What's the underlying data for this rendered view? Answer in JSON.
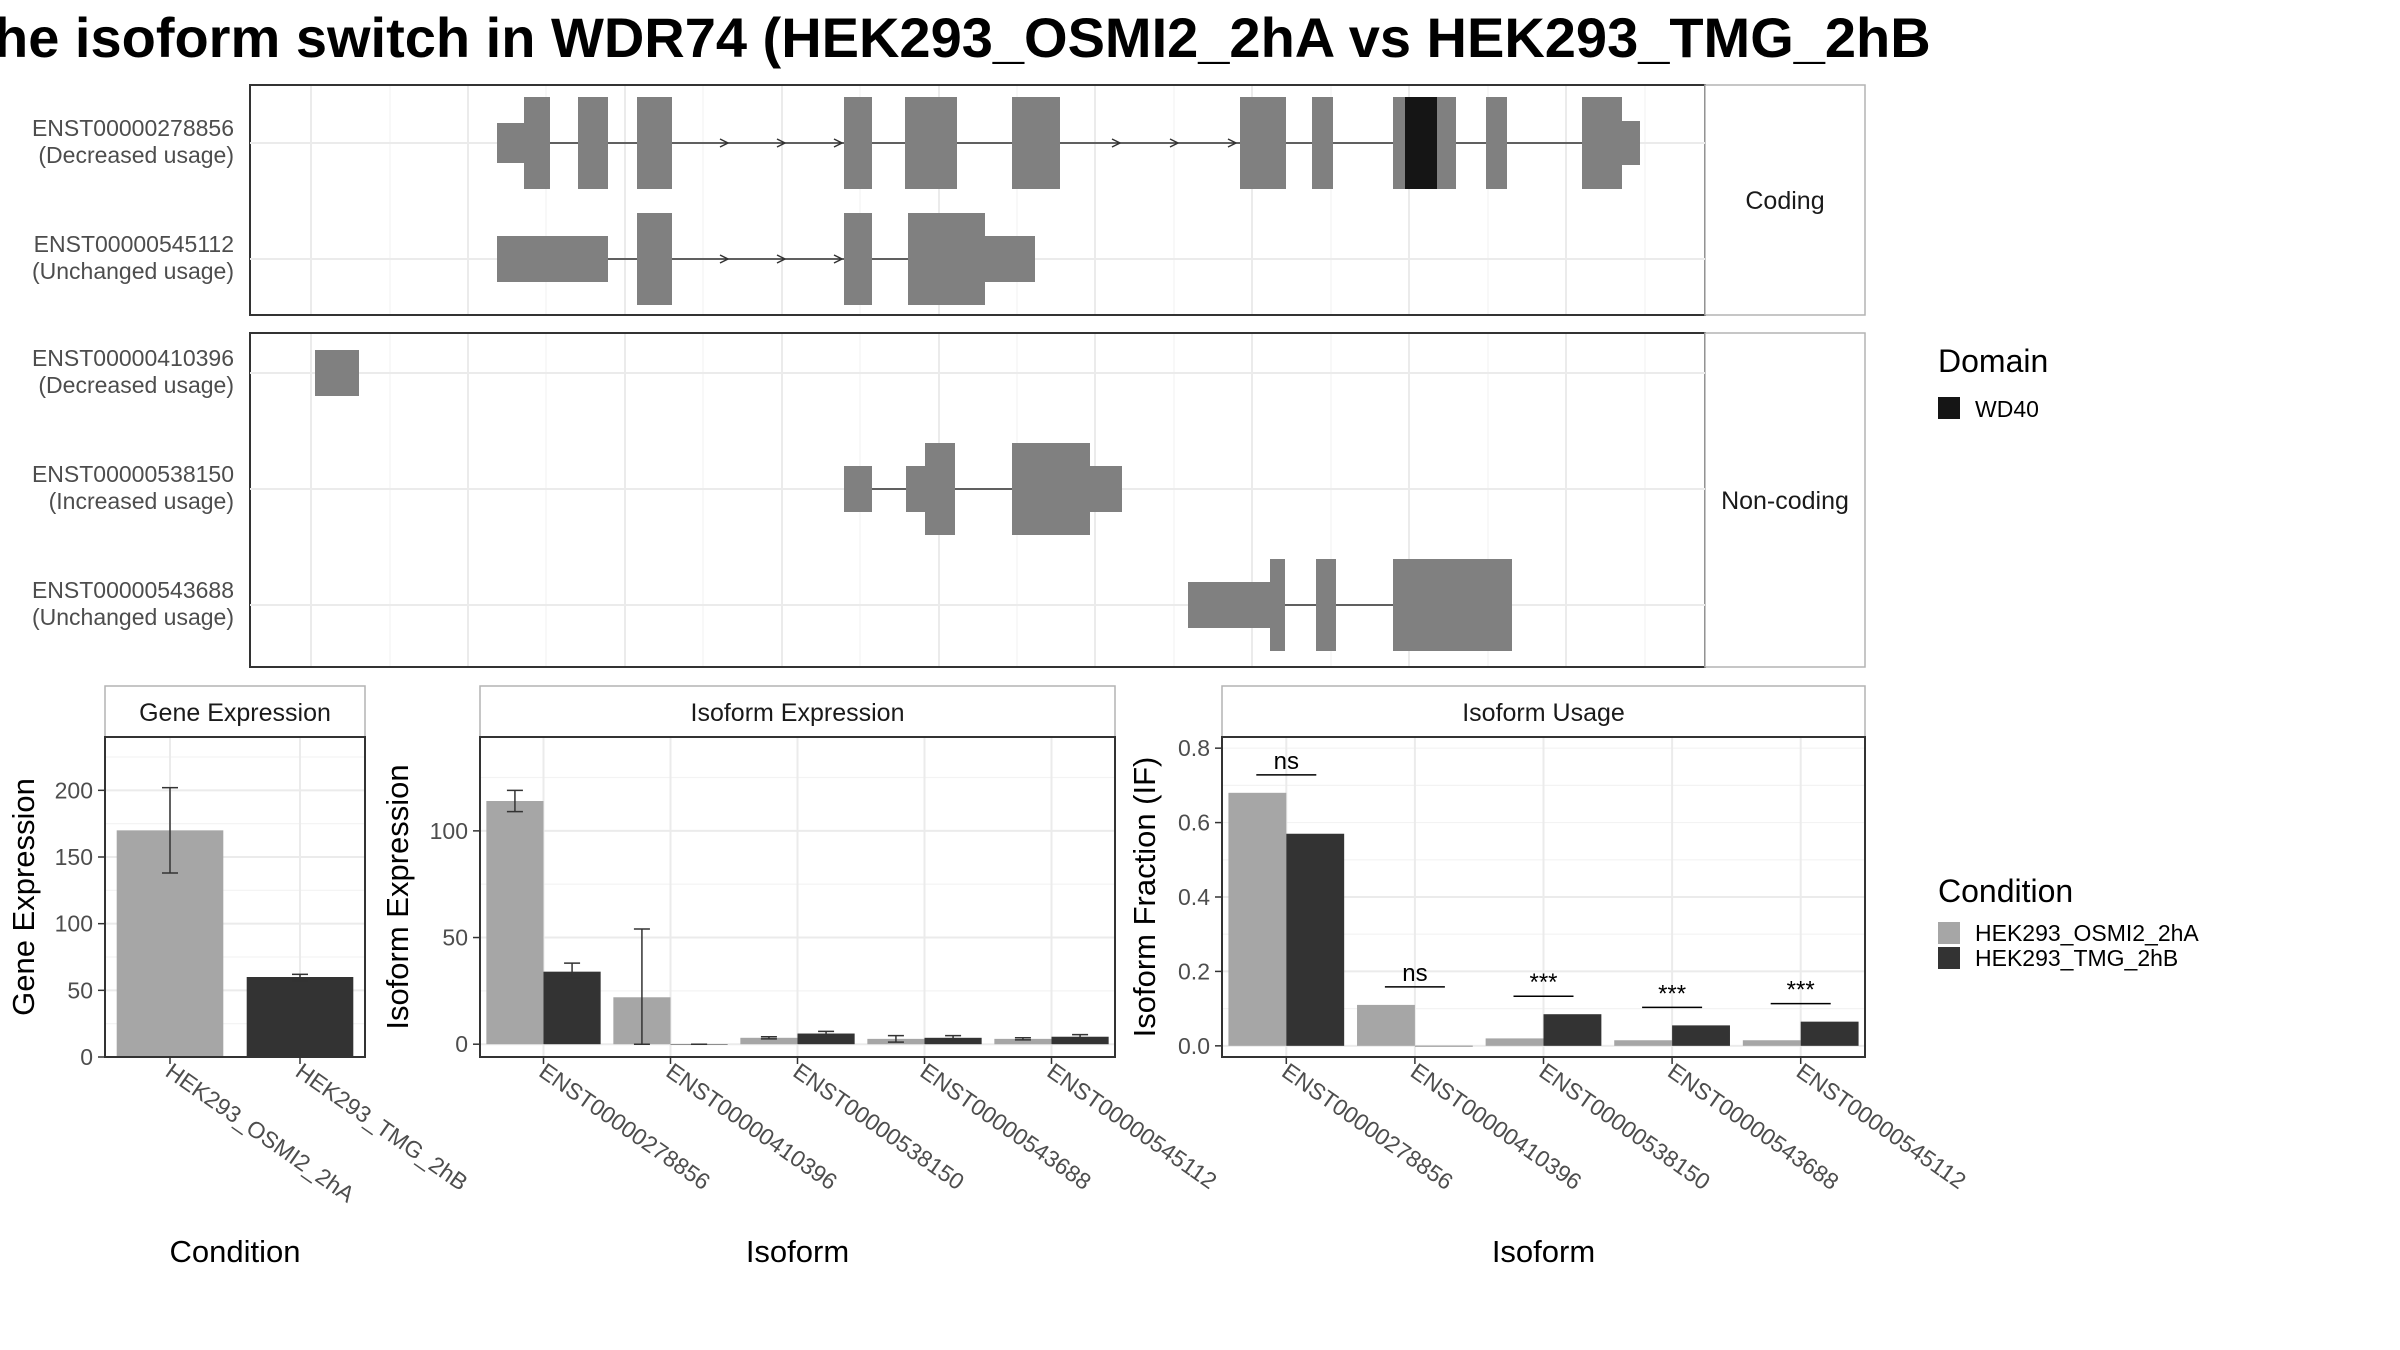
{
  "title": "he isoform switch in WDR74 (HEK293_OSMI2_2hA vs HEK293_TMG_2hB",
  "colors": {
    "exon": "#808080",
    "domain": "#151515",
    "cond1": "#a6a6a6",
    "cond2": "#333333",
    "grid": "#ebebeb",
    "frame": "#333333",
    "strip_border": "#b3b3b3"
  },
  "structure": {
    "facets": [
      "Coding",
      "Non-coding"
    ],
    "transcripts": [
      {
        "id": "ENST00000278856",
        "usage": "(Decreased usage)"
      },
      {
        "id": "ENST00000545112",
        "usage": "(Unchanged usage)"
      },
      {
        "id": "ENST00000410396",
        "usage": "(Decreased usage)"
      },
      {
        "id": "ENST00000538150",
        "usage": "(Increased usage)"
      },
      {
        "id": "ENST00000543688",
        "usage": "(Unchanged usage)"
      }
    ]
  },
  "legends": {
    "domain": {
      "title": "Domain",
      "items": [
        "WD40"
      ]
    },
    "condition": {
      "title": "Condition",
      "items": [
        "HEK293_OSMI2_2hA",
        "HEK293_TMG_2hB"
      ]
    }
  },
  "chart_data": [
    {
      "type": "bar",
      "title": "Gene Expression",
      "xlabel": "Condition",
      "ylabel": "Gene Expression",
      "categories": [
        "HEK293_OSMI2_2hA",
        "HEK293_TMG_2hB"
      ],
      "values": [
        170,
        60
      ],
      "errors": [
        [
          138,
          202
        ],
        [
          57,
          62
        ]
      ],
      "ylim": [
        0,
        240
      ],
      "yticks": [
        "0",
        "50",
        "100",
        "150",
        "200"
      ]
    },
    {
      "type": "bar",
      "title": "Isoform Expression",
      "xlabel": "Isoform",
      "ylabel": "Isoform Expression",
      "categories": [
        "ENST00000278856",
        "ENST00000410396",
        "ENST00000538150",
        "ENST00000543688",
        "ENST00000545112"
      ],
      "series": [
        {
          "name": "HEK293_OSMI2_2hA",
          "values": [
            114,
            22,
            3,
            2.5,
            2.5
          ],
          "errors": [
            [
              109,
              119
            ],
            [
              0,
              54
            ],
            [
              2.5,
              3.5
            ],
            [
              1,
              4
            ],
            [
              2,
              3
            ]
          ]
        },
        {
          "name": "HEK293_TMG_2hB",
          "values": [
            34,
            0,
            5,
            3,
            3.5
          ],
          "errors": [
            [
              31,
              38
            ],
            [
              0,
              0
            ],
            [
              4,
              6
            ],
            [
              2,
              4
            ],
            [
              2.5,
              4.5
            ]
          ]
        }
      ],
      "ylim": [
        -6,
        144
      ],
      "yticks": [
        "0",
        "50",
        "100"
      ]
    },
    {
      "type": "bar",
      "title": "Isoform Usage",
      "xlabel": "Isoform",
      "ylabel": "Isoform Fraction (IF)",
      "categories": [
        "ENST00000278856",
        "ENST00000410396",
        "ENST00000538150",
        "ENST00000543688",
        "ENST00000545112"
      ],
      "series": [
        {
          "name": "HEK293_OSMI2_2hA",
          "values": [
            0.68,
            0.11,
            0.02,
            0.015,
            0.015
          ]
        },
        {
          "name": "HEK293_TMG_2hB",
          "values": [
            0.57,
            0.0,
            0.085,
            0.055,
            0.065
          ]
        }
      ],
      "annotations": [
        "ns",
        "ns",
        "***",
        "***",
        "***"
      ],
      "ylim": [
        -0.03,
        0.83
      ],
      "yticks": [
        "0.0",
        "0.2",
        "0.4",
        "0.6",
        "0.8"
      ]
    }
  ]
}
